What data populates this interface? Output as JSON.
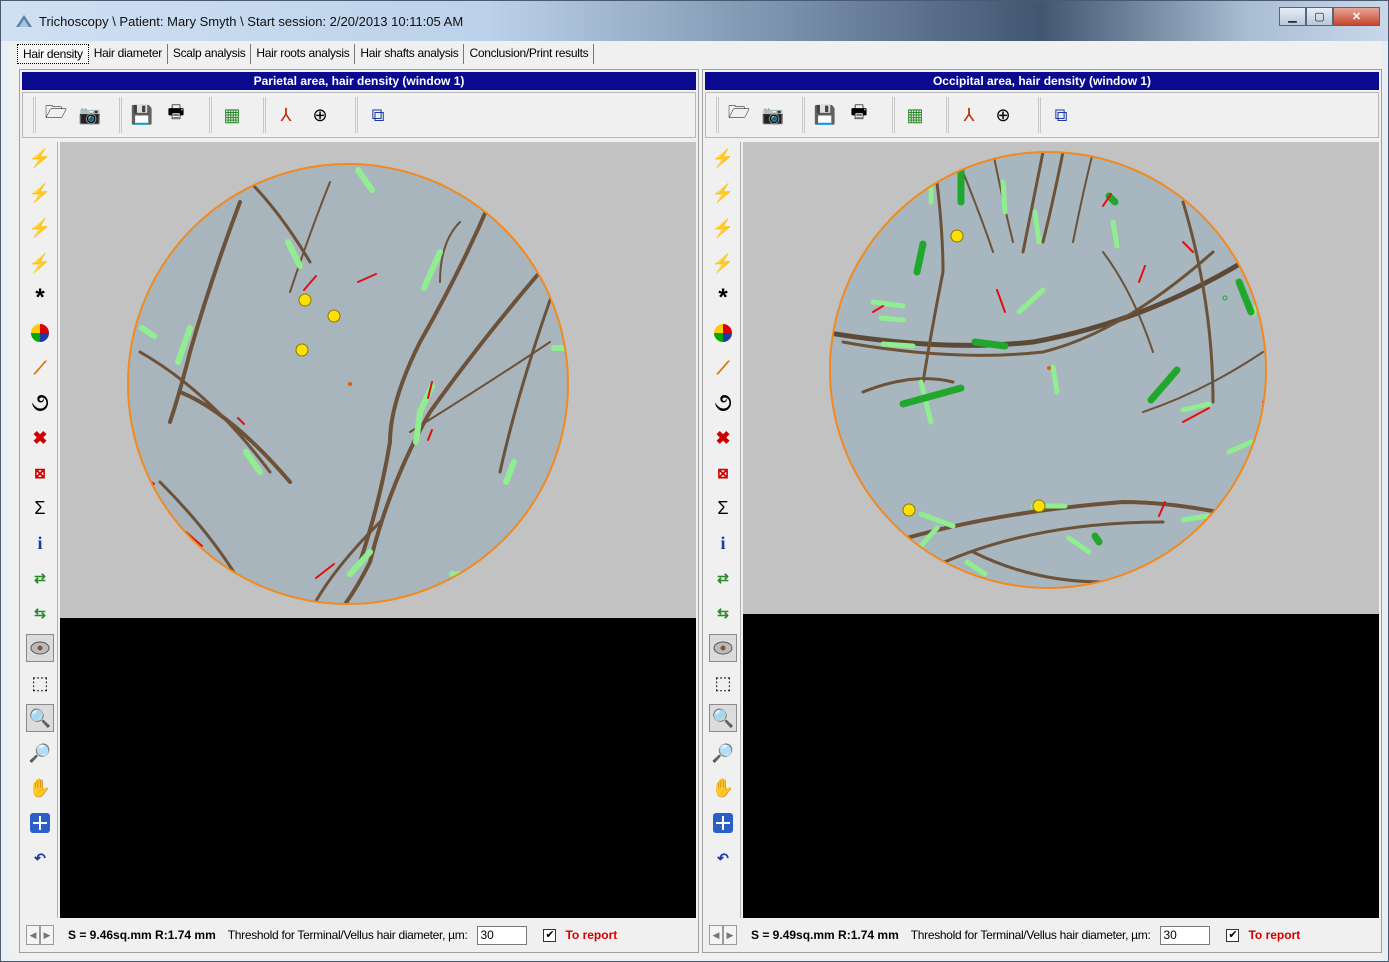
{
  "window": {
    "title": "Trichoscopy  \\ Patient: Mary Smyth \\ Start session: 2/20/2013 10:11:05 AM",
    "min_icon": "minimize-icon",
    "max_icon": "maximize-icon",
    "close_icon": "close-icon"
  },
  "tabs": [
    {
      "label": "Hair density",
      "active": true
    },
    {
      "label": "Hair diameter"
    },
    {
      "label": "Scalp analysis"
    },
    {
      "label": "Hair roots analysis"
    },
    {
      "label": "Hair shafts analysis"
    },
    {
      "label": "Conclusion/Print results"
    }
  ],
  "panels": {
    "left": {
      "title": "Parietal area, hair density (window 1)",
      "area": "S = 9.46sq.mm R:1.74 mm",
      "threshold_label": "Threshold for Terminal/Vellus hair diameter, µm:",
      "threshold_value": "30",
      "to_report_checked": true,
      "to_report_label": "To report"
    },
    "right": {
      "title": "Occipital area, hair density (window 1)",
      "area": "S = 9.49sq.mm R:1.74 mm",
      "threshold_label": "Threshold for Terminal/Vellus hair diameter, µm:",
      "threshold_value": "30",
      "to_report_checked": true,
      "to_report_label": "To report"
    }
  },
  "toolbar_icons": [
    "open-folder-icon",
    "camera-icon",
    "save-icon",
    "print-icon",
    "grid-icon",
    "text-tool-icon",
    "crosshair-icon",
    "window-stack-icon"
  ],
  "side_icons": [
    "magic-wand-red-icon",
    "magic-wand-yellow-icon",
    "magic-wand-green-icon",
    "magic-wand-white-icon",
    "asterisk-icon",
    "color-wheel-icon",
    "ruler-icon",
    "curl-icon",
    "delete-icon",
    "delete-selection-icon",
    "sum-icon",
    "info-icon",
    "swap-right-icon",
    "swap-left-icon",
    "eye-oval-icon",
    "select-rect-icon",
    "zoom-icon",
    "pan-zoom-icon",
    "hand-icon",
    "fit-window-icon",
    "undo-icon"
  ],
  "colors": {
    "title_bar": "#0a0a8e",
    "report": "#d40000",
    "mark_light": "#90ee90",
    "mark_dark": "#1fa82b",
    "mark_red": "#e01010",
    "circle": "#f08a20"
  }
}
